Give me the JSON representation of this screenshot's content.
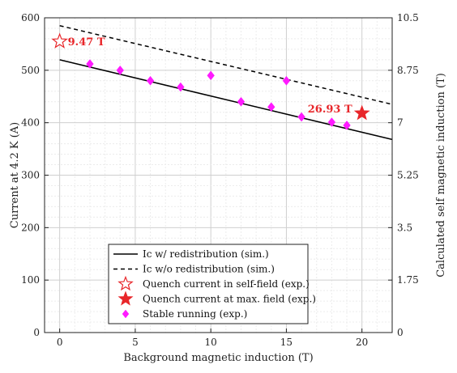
{
  "chart_data": {
    "type": "line",
    "xlabel": "Background magnetic induction (T)",
    "ylabel": "Current at 4.2 K (A)",
    "y2label": "Calculated self magnetic induction (T)",
    "xlim": [
      -1,
      22
    ],
    "ylim": [
      0,
      600
    ],
    "y2lim": [
      0,
      10.5
    ],
    "x_ticks": [
      0,
      5,
      10,
      15,
      20
    ],
    "x_tick_labels": [
      "0",
      "5",
      "10",
      "15",
      "20"
    ],
    "y_ticks": [
      0,
      100,
      200,
      300,
      400,
      500,
      600
    ],
    "y_tick_labels": [
      "0",
      "100",
      "200",
      "300",
      "400",
      "500",
      "600"
    ],
    "y2_ticks": [
      0,
      1.75,
      3.5,
      5.25,
      7,
      8.75,
      10.5
    ],
    "y2_tick_labels": [
      "0",
      "1.75",
      "3.5",
      "5.25",
      "7",
      "8.75",
      "10.5"
    ],
    "grid": true,
    "legend_position": "bottom-center",
    "series": [
      {
        "name": "Ic w/ redistribution (sim.)",
        "kind": "line",
        "style": "solid",
        "color": "#000000",
        "x": [
          0,
          22
        ],
        "y": [
          520,
          368
        ]
      },
      {
        "name": "Ic w/o redistribution (sim.)",
        "kind": "line",
        "style": "dashed",
        "color": "#000000",
        "x": [
          0,
          22
        ],
        "y": [
          585,
          435
        ]
      },
      {
        "name": "Quench current in self-field (exp.)",
        "kind": "marker",
        "marker": "star-open",
        "color": "#e8262a",
        "x": [
          0
        ],
        "y": [
          555
        ]
      },
      {
        "name": "Quench current at max. field (exp.)",
        "kind": "marker",
        "marker": "star-filled",
        "color": "#e8262a",
        "x": [
          20
        ],
        "y": [
          418
        ]
      },
      {
        "name": "Stable running (exp.)",
        "kind": "marker",
        "marker": "diamond",
        "color": "#ff1aff",
        "x": [
          2,
          4,
          6,
          8,
          10,
          12,
          14,
          15,
          16,
          18,
          19
        ],
        "y": [
          512,
          500,
          480,
          468,
          490,
          440,
          430,
          480,
          411,
          401,
          395
        ]
      }
    ],
    "annotations": [
      {
        "text": "9.47 T",
        "x": 0,
        "y": 555,
        "color": "#e8262a"
      },
      {
        "text": "26.93 T",
        "x": 20,
        "y": 418,
        "color": "#e8262a"
      }
    ]
  }
}
